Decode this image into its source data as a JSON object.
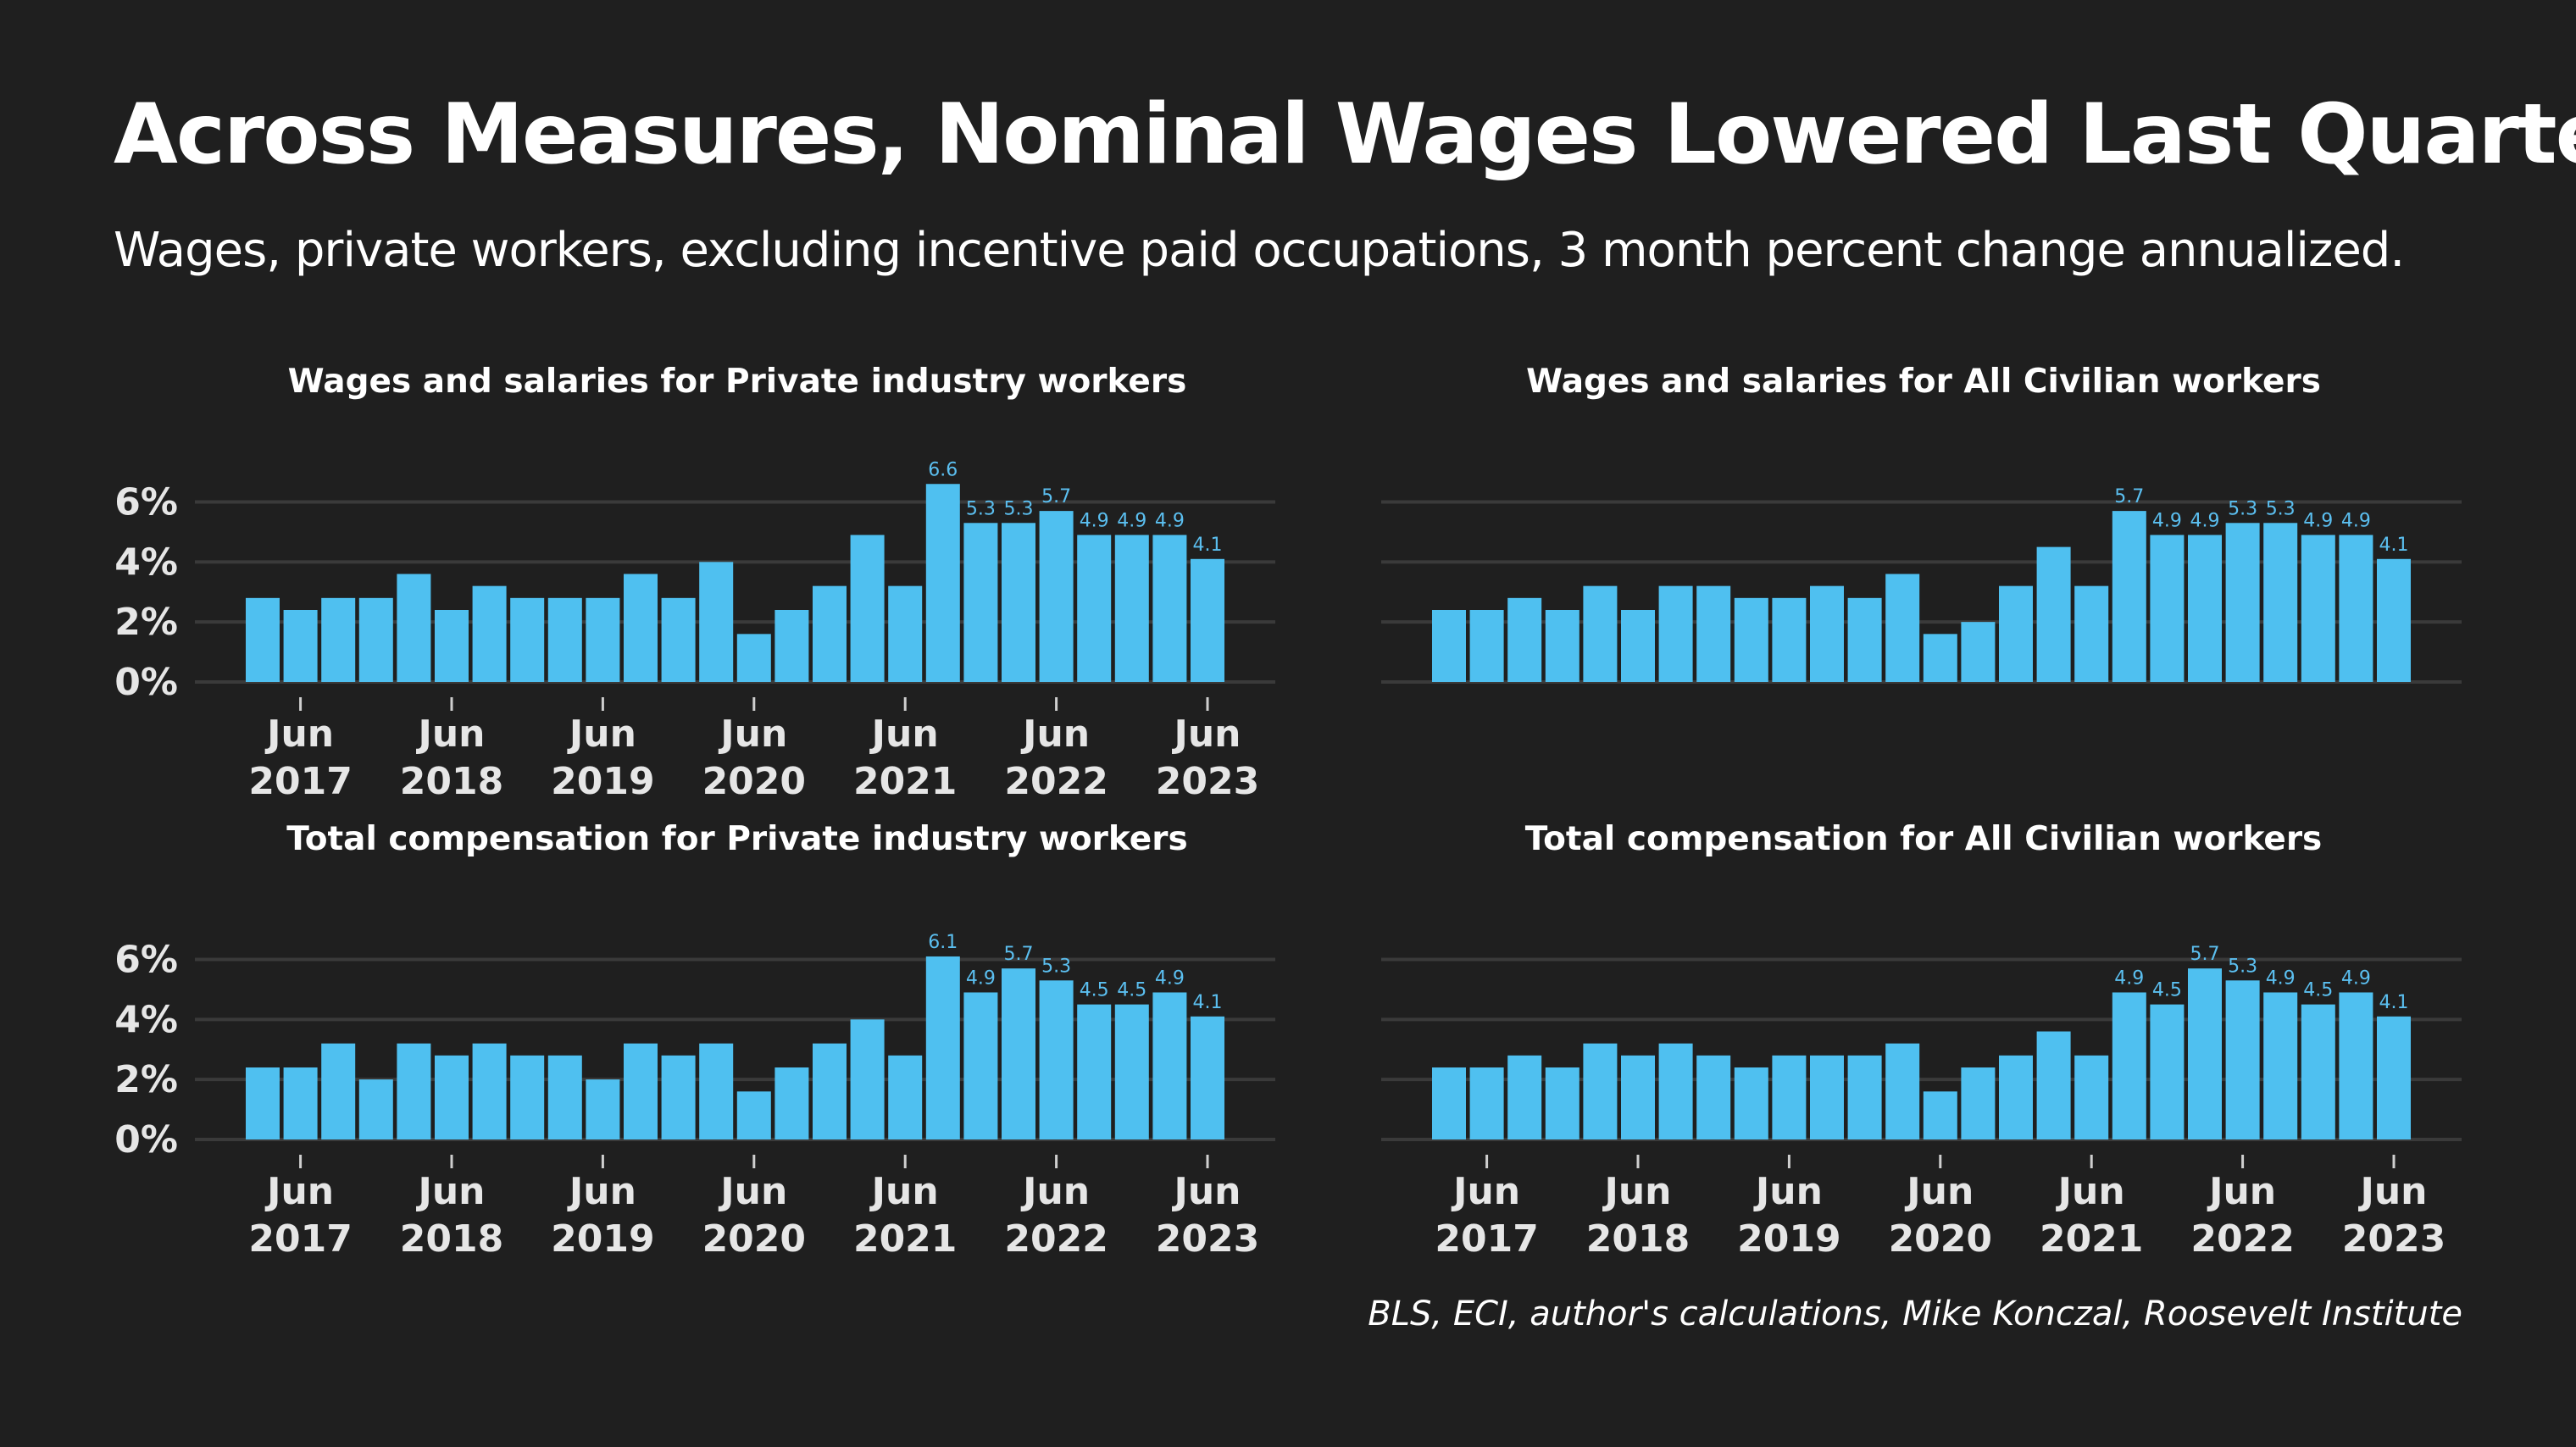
{
  "title": "Across Measures, Nominal Wages Lowered Last Quarter",
  "subtitle": "Wages, private workers, excluding incentive paid occupations, 3 month percent change annualized.",
  "source": "BLS, ECI, author's calculations, Mike Konczal, Roosevelt Institute",
  "colors": {
    "background": "#1f1f1f",
    "bar": "#4fc0f0",
    "label": "#5bbff0",
    "grid": "#3a3a3a"
  },
  "chart_data": [
    {
      "type": "bar",
      "title": "Wages and salaries for Private industry workers",
      "ylim": [
        0,
        7.2
      ],
      "yticks": [
        "0%",
        "2%",
        "4%",
        "6%"
      ],
      "xticks": [
        {
          "month": "Jun",
          "year": "2017"
        },
        {
          "month": "Jun",
          "year": "2018"
        },
        {
          "month": "Jun",
          "year": "2019"
        },
        {
          "month": "Jun",
          "year": "2020"
        },
        {
          "month": "Jun",
          "year": "2021"
        },
        {
          "month": "Jun",
          "year": "2022"
        },
        {
          "month": "Jun",
          "year": "2023"
        }
      ],
      "values": [
        2.8,
        2.4,
        2.8,
        2.8,
        3.6,
        2.4,
        3.2,
        2.8,
        2.8,
        2.8,
        3.6,
        2.8,
        4.0,
        1.6,
        2.4,
        3.2,
        4.9,
        3.2,
        6.6,
        5.3,
        5.3,
        5.7,
        4.9,
        4.9,
        4.9,
        4.1
      ],
      "data_labels": [
        "",
        "",
        "",
        "",
        "",
        "",
        "",
        "",
        "",
        "",
        "",
        "",
        "",
        "",
        "",
        "",
        "",
        "",
        "6.6",
        "5.3",
        "5.3",
        "5.7",
        "4.9",
        "4.9",
        "4.9",
        "4.1"
      ],
      "grid": true
    },
    {
      "type": "bar",
      "title": "Wages and salaries for All Civilian workers",
      "ylim": [
        0,
        7.2
      ],
      "yticks": [],
      "xticks": [],
      "values": [
        2.4,
        2.4,
        2.8,
        2.4,
        3.2,
        2.4,
        3.2,
        3.2,
        2.8,
        2.8,
        3.2,
        2.8,
        3.6,
        1.6,
        2.0,
        3.2,
        4.5,
        3.2,
        5.7,
        4.9,
        4.9,
        5.3,
        5.3,
        4.9,
        4.9,
        4.1
      ],
      "data_labels": [
        "",
        "",
        "",
        "",
        "",
        "",
        "",
        "",
        "",
        "",
        "",
        "",
        "",
        "",
        "",
        "",
        "",
        "",
        "5.7",
        "4.9",
        "4.9",
        "5.3",
        "5.3",
        "4.9",
        "4.9",
        "4.1"
      ],
      "grid": true
    },
    {
      "type": "bar",
      "title": "Total compensation for Private industry workers",
      "ylim": [
        0,
        7.2
      ],
      "yticks": [
        "0%",
        "2%",
        "4%",
        "6%"
      ],
      "xticks": [
        {
          "month": "Jun",
          "year": "2017"
        },
        {
          "month": "Jun",
          "year": "2018"
        },
        {
          "month": "Jun",
          "year": "2019"
        },
        {
          "month": "Jun",
          "year": "2020"
        },
        {
          "month": "Jun",
          "year": "2021"
        },
        {
          "month": "Jun",
          "year": "2022"
        },
        {
          "month": "Jun",
          "year": "2023"
        }
      ],
      "values": [
        2.4,
        2.4,
        3.2,
        2.0,
        3.2,
        2.8,
        3.2,
        2.8,
        2.8,
        2.0,
        3.2,
        2.8,
        3.2,
        1.6,
        2.4,
        3.2,
        4.0,
        2.8,
        6.1,
        4.9,
        5.7,
        5.3,
        4.5,
        4.5,
        4.9,
        4.1
      ],
      "data_labels": [
        "",
        "",
        "",
        "",
        "",
        "",
        "",
        "",
        "",
        "",
        "",
        "",
        "",
        "",
        "",
        "",
        "",
        "",
        "6.1",
        "4.9",
        "5.7",
        "5.3",
        "4.5",
        "4.5",
        "4.9",
        "4.1"
      ],
      "grid": true
    },
    {
      "type": "bar",
      "title": "Total compensation for All Civilian workers",
      "ylim": [
        0,
        7.2
      ],
      "yticks": [],
      "xticks": [
        {
          "month": "Jun",
          "year": "2017"
        },
        {
          "month": "Jun",
          "year": "2018"
        },
        {
          "month": "Jun",
          "year": "2019"
        },
        {
          "month": "Jun",
          "year": "2020"
        },
        {
          "month": "Jun",
          "year": "2021"
        },
        {
          "month": "Jun",
          "year": "2022"
        },
        {
          "month": "Jun",
          "year": "2023"
        }
      ],
      "values": [
        2.4,
        2.4,
        2.8,
        2.4,
        3.2,
        2.8,
        3.2,
        2.8,
        2.4,
        2.8,
        2.8,
        2.8,
        3.2,
        1.6,
        2.4,
        2.8,
        3.6,
        2.8,
        4.9,
        4.5,
        5.7,
        5.3,
        4.9,
        4.5,
        4.9,
        4.1
      ],
      "data_labels": [
        "",
        "",
        "",
        "",
        "",
        "",
        "",
        "",
        "",
        "",
        "",
        "",
        "",
        "",
        "",
        "",
        "",
        "",
        "4.9",
        "4.5",
        "5.7",
        "5.3",
        "4.9",
        "4.5",
        "4.9",
        "4.1"
      ],
      "grid": true
    }
  ]
}
